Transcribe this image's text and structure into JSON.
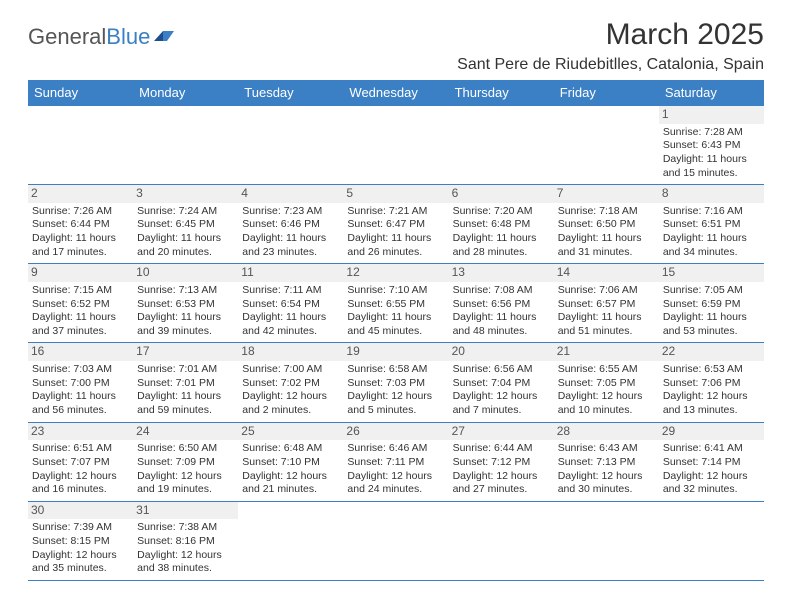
{
  "logo": {
    "word1": "General",
    "word2": "Blue"
  },
  "header": {
    "title": "March 2025",
    "location": "Sant Pere de Riudebitlles, Catalonia, Spain"
  },
  "colors": {
    "header_bg": "#3b7fc4",
    "header_text": "#ffffff",
    "border": "#3b7fc4",
    "daynum_bg": "#f0f0f0",
    "text": "#333333"
  },
  "dayNames": [
    "Sunday",
    "Monday",
    "Tuesday",
    "Wednesday",
    "Thursday",
    "Friday",
    "Saturday"
  ],
  "weeks": [
    [
      null,
      null,
      null,
      null,
      null,
      null,
      {
        "n": "1",
        "sr": "Sunrise: 7:28 AM",
        "ss": "Sunset: 6:43 PM",
        "d1": "Daylight: 11 hours",
        "d2": "and 15 minutes."
      }
    ],
    [
      {
        "n": "2",
        "sr": "Sunrise: 7:26 AM",
        "ss": "Sunset: 6:44 PM",
        "d1": "Daylight: 11 hours",
        "d2": "and 17 minutes."
      },
      {
        "n": "3",
        "sr": "Sunrise: 7:24 AM",
        "ss": "Sunset: 6:45 PM",
        "d1": "Daylight: 11 hours",
        "d2": "and 20 minutes."
      },
      {
        "n": "4",
        "sr": "Sunrise: 7:23 AM",
        "ss": "Sunset: 6:46 PM",
        "d1": "Daylight: 11 hours",
        "d2": "and 23 minutes."
      },
      {
        "n": "5",
        "sr": "Sunrise: 7:21 AM",
        "ss": "Sunset: 6:47 PM",
        "d1": "Daylight: 11 hours",
        "d2": "and 26 minutes."
      },
      {
        "n": "6",
        "sr": "Sunrise: 7:20 AM",
        "ss": "Sunset: 6:48 PM",
        "d1": "Daylight: 11 hours",
        "d2": "and 28 minutes."
      },
      {
        "n": "7",
        "sr": "Sunrise: 7:18 AM",
        "ss": "Sunset: 6:50 PM",
        "d1": "Daylight: 11 hours",
        "d2": "and 31 minutes."
      },
      {
        "n": "8",
        "sr": "Sunrise: 7:16 AM",
        "ss": "Sunset: 6:51 PM",
        "d1": "Daylight: 11 hours",
        "d2": "and 34 minutes."
      }
    ],
    [
      {
        "n": "9",
        "sr": "Sunrise: 7:15 AM",
        "ss": "Sunset: 6:52 PM",
        "d1": "Daylight: 11 hours",
        "d2": "and 37 minutes."
      },
      {
        "n": "10",
        "sr": "Sunrise: 7:13 AM",
        "ss": "Sunset: 6:53 PM",
        "d1": "Daylight: 11 hours",
        "d2": "and 39 minutes."
      },
      {
        "n": "11",
        "sr": "Sunrise: 7:11 AM",
        "ss": "Sunset: 6:54 PM",
        "d1": "Daylight: 11 hours",
        "d2": "and 42 minutes."
      },
      {
        "n": "12",
        "sr": "Sunrise: 7:10 AM",
        "ss": "Sunset: 6:55 PM",
        "d1": "Daylight: 11 hours",
        "d2": "and 45 minutes."
      },
      {
        "n": "13",
        "sr": "Sunrise: 7:08 AM",
        "ss": "Sunset: 6:56 PM",
        "d1": "Daylight: 11 hours",
        "d2": "and 48 minutes."
      },
      {
        "n": "14",
        "sr": "Sunrise: 7:06 AM",
        "ss": "Sunset: 6:57 PM",
        "d1": "Daylight: 11 hours",
        "d2": "and 51 minutes."
      },
      {
        "n": "15",
        "sr": "Sunrise: 7:05 AM",
        "ss": "Sunset: 6:59 PM",
        "d1": "Daylight: 11 hours",
        "d2": "and 53 minutes."
      }
    ],
    [
      {
        "n": "16",
        "sr": "Sunrise: 7:03 AM",
        "ss": "Sunset: 7:00 PM",
        "d1": "Daylight: 11 hours",
        "d2": "and 56 minutes."
      },
      {
        "n": "17",
        "sr": "Sunrise: 7:01 AM",
        "ss": "Sunset: 7:01 PM",
        "d1": "Daylight: 11 hours",
        "d2": "and 59 minutes."
      },
      {
        "n": "18",
        "sr": "Sunrise: 7:00 AM",
        "ss": "Sunset: 7:02 PM",
        "d1": "Daylight: 12 hours",
        "d2": "and 2 minutes."
      },
      {
        "n": "19",
        "sr": "Sunrise: 6:58 AM",
        "ss": "Sunset: 7:03 PM",
        "d1": "Daylight: 12 hours",
        "d2": "and 5 minutes."
      },
      {
        "n": "20",
        "sr": "Sunrise: 6:56 AM",
        "ss": "Sunset: 7:04 PM",
        "d1": "Daylight: 12 hours",
        "d2": "and 7 minutes."
      },
      {
        "n": "21",
        "sr": "Sunrise: 6:55 AM",
        "ss": "Sunset: 7:05 PM",
        "d1": "Daylight: 12 hours",
        "d2": "and 10 minutes."
      },
      {
        "n": "22",
        "sr": "Sunrise: 6:53 AM",
        "ss": "Sunset: 7:06 PM",
        "d1": "Daylight: 12 hours",
        "d2": "and 13 minutes."
      }
    ],
    [
      {
        "n": "23",
        "sr": "Sunrise: 6:51 AM",
        "ss": "Sunset: 7:07 PM",
        "d1": "Daylight: 12 hours",
        "d2": "and 16 minutes."
      },
      {
        "n": "24",
        "sr": "Sunrise: 6:50 AM",
        "ss": "Sunset: 7:09 PM",
        "d1": "Daylight: 12 hours",
        "d2": "and 19 minutes."
      },
      {
        "n": "25",
        "sr": "Sunrise: 6:48 AM",
        "ss": "Sunset: 7:10 PM",
        "d1": "Daylight: 12 hours",
        "d2": "and 21 minutes."
      },
      {
        "n": "26",
        "sr": "Sunrise: 6:46 AM",
        "ss": "Sunset: 7:11 PM",
        "d1": "Daylight: 12 hours",
        "d2": "and 24 minutes."
      },
      {
        "n": "27",
        "sr": "Sunrise: 6:44 AM",
        "ss": "Sunset: 7:12 PM",
        "d1": "Daylight: 12 hours",
        "d2": "and 27 minutes."
      },
      {
        "n": "28",
        "sr": "Sunrise: 6:43 AM",
        "ss": "Sunset: 7:13 PM",
        "d1": "Daylight: 12 hours",
        "d2": "and 30 minutes."
      },
      {
        "n": "29",
        "sr": "Sunrise: 6:41 AM",
        "ss": "Sunset: 7:14 PM",
        "d1": "Daylight: 12 hours",
        "d2": "and 32 minutes."
      }
    ],
    [
      {
        "n": "30",
        "sr": "Sunrise: 7:39 AM",
        "ss": "Sunset: 8:15 PM",
        "d1": "Daylight: 12 hours",
        "d2": "and 35 minutes."
      },
      {
        "n": "31",
        "sr": "Sunrise: 7:38 AM",
        "ss": "Sunset: 8:16 PM",
        "d1": "Daylight: 12 hours",
        "d2": "and 38 minutes."
      },
      null,
      null,
      null,
      null,
      null
    ]
  ]
}
